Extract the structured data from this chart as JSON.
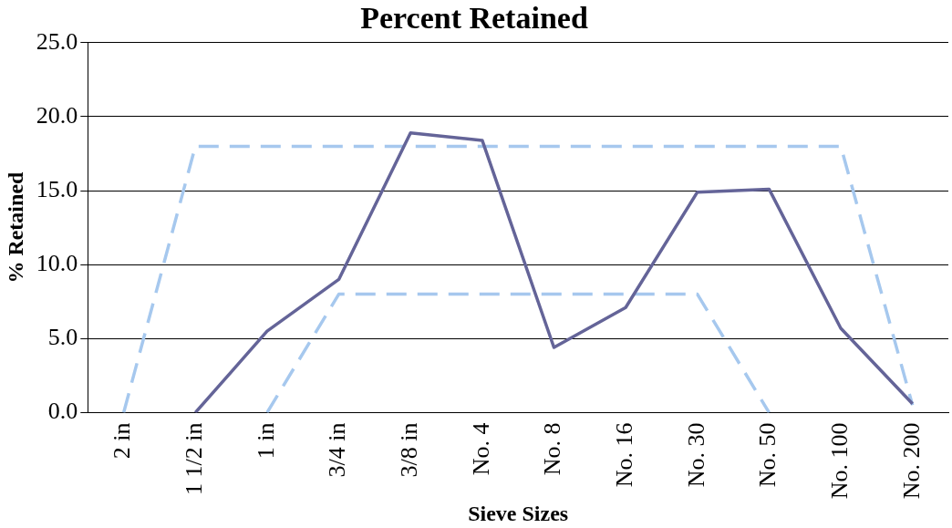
{
  "chart_data": {
    "type": "line",
    "title": "Percent Retained",
    "xlabel": "Sieve Sizes",
    "ylabel": "% Retained",
    "categories": [
      "2 in",
      "1 1/2 in",
      "1 in",
      "3/4 in",
      "3/8 in",
      "No. 4",
      "No. 8",
      "No. 16",
      "No. 30",
      "No. 50",
      "No. 100",
      "No. 200"
    ],
    "series": [
      {
        "color": "#646498",
        "line_style": "solid",
        "values": [
          null,
          0,
          5.5,
          9.0,
          18.9,
          18.4,
          4.4,
          7.1,
          14.9,
          15.1,
          5.7,
          0.6
        ]
      },
      {
        "color": "#a6c8ee",
        "line_style": "dashed",
        "values": [
          0,
          18,
          18,
          18,
          18,
          18,
          18,
          18,
          18,
          18,
          18,
          0.5
        ]
      },
      {
        "color": "#a6c8ee",
        "line_style": "dashed",
        "values": [
          null,
          null,
          0,
          8,
          8,
          8,
          8,
          8,
          8,
          0,
          null,
          null
        ]
      }
    ],
    "ylim": [
      0,
      25
    ],
    "yticks": [
      {
        "value": 0,
        "label": "0.0"
      },
      {
        "value": 5,
        "label": "5.0"
      },
      {
        "value": 10,
        "label": "10.0"
      },
      {
        "value": 15,
        "label": "15.0"
      },
      {
        "value": 20,
        "label": "20.0"
      },
      {
        "value": 25,
        "label": "25.0"
      }
    ],
    "grid": "y",
    "legend": false,
    "marker": "none"
  }
}
